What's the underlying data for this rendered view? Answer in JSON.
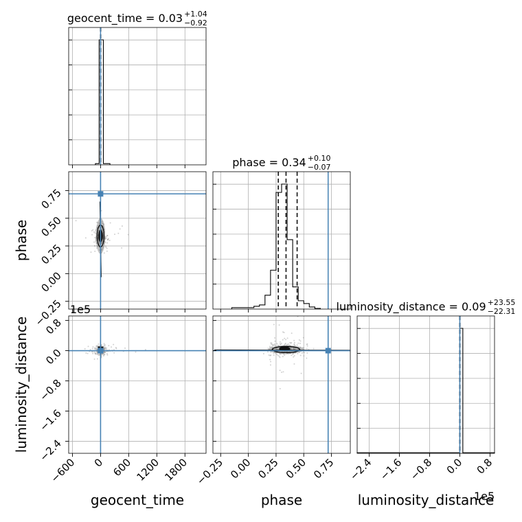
{
  "chart_data": {
    "type": "corner",
    "truth_color": "#4682b4",
    "grid": true,
    "parameters": [
      {
        "name": "geocent_time",
        "xlabel": "geocent_time",
        "title_prefix": "geocent_time = 0.03",
        "title_sup": "+1.04",
        "title_sub": "−0.92",
        "range": [
          -680,
          2250
        ],
        "ticks": [
          -600,
          0,
          600,
          1200,
          1800
        ],
        "tick_labels": [
          "−600",
          "0",
          "600",
          "1200",
          "1800"
        ],
        "quantiles": [
          -0.89,
          0.03,
          1.07
        ],
        "truth": 0,
        "hist_bins": [
          {
            "x0": -110,
            "x1": -30,
            "h": 0.01
          },
          {
            "x0": -30,
            "x1": 60,
            "h": 1.0
          },
          {
            "x0": 60,
            "x1": 200,
            "h": 0.01
          }
        ]
      },
      {
        "name": "phase",
        "ylabel": "phase",
        "xlabel": "phase",
        "title_prefix": "phase = 0.34",
        "title_sup": "+0.10",
        "title_sub": "−0.07",
        "range": [
          -0.32,
          0.92
        ],
        "ticks": [
          -0.25,
          0,
          0.25,
          0.5,
          0.75
        ],
        "tick_labels": [
          "−0.25",
          "0.00",
          "0.25",
          "0.50",
          "0.75"
        ],
        "quantiles": [
          0.27,
          0.34,
          0.44
        ],
        "truth": 0.72,
        "hist_bins": [
          {
            "x0": -0.15,
            "x1": 0.05,
            "h": 0.01
          },
          {
            "x0": 0.05,
            "x1": 0.1,
            "h": 0.02
          },
          {
            "x0": 0.1,
            "x1": 0.15,
            "h": 0.03
          },
          {
            "x0": 0.15,
            "x1": 0.2,
            "h": 0.1
          },
          {
            "x0": 0.2,
            "x1": 0.25,
            "h": 0.28
          },
          {
            "x0": 0.25,
            "x1": 0.3,
            "h": 0.84
          },
          {
            "x0": 0.3,
            "x1": 0.35,
            "h": 0.9
          },
          {
            "x0": 0.35,
            "x1": 0.4,
            "h": 0.5
          },
          {
            "x0": 0.4,
            "x1": 0.45,
            "h": 0.16
          },
          {
            "x0": 0.45,
            "x1": 0.5,
            "h": 0.06
          },
          {
            "x0": 0.5,
            "x1": 0.55,
            "h": 0.04
          },
          {
            "x0": 0.55,
            "x1": 0.6,
            "h": 0.015
          },
          {
            "x0": 0.6,
            "x1": 0.65,
            "h": 0.005
          }
        ]
      },
      {
        "name": "luminosity_distance",
        "ylabel": "luminosity_distance",
        "xlabel": "luminosity_distance",
        "title_prefix": "luminosity_distance = 0.09",
        "title_sup": "+23.55",
        "title_sub": "−22.31",
        "range": [
          -272000,
          92000
        ],
        "ticks": [
          -240000,
          -160000,
          -80000,
          0,
          80000
        ],
        "tick_labels": [
          "−2.4",
          "−1.6",
          "−0.8",
          "0.0",
          "0.8"
        ],
        "offset_text": "1e5",
        "quantiles": [
          -22.22,
          0.09,
          23.64
        ],
        "truth": 0,
        "hist_bins": [
          {
            "x0": -272000,
            "x1": 0,
            "h": 0.004
          },
          {
            "x0": 0,
            "x1": 8000,
            "h": 0.9
          },
          {
            "x0": 8000,
            "x1": 92000,
            "h": 0.004
          }
        ]
      }
    ],
    "posterior_mean": {
      "geocent_time": 0.03,
      "phase": 0.34,
      "luminosity_distance": 3000
    }
  }
}
